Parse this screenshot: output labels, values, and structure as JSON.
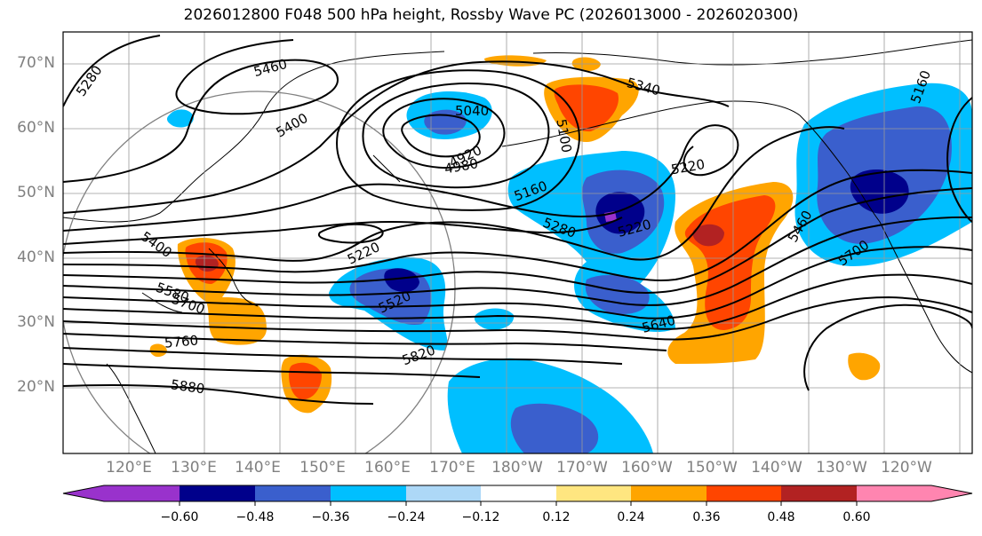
{
  "title": "2026012800 F048 500 hPa height, Rossby Wave PC (2026013000 - 2026020300)",
  "map": {
    "projection_ring": "circle",
    "lat_labels": [
      "70°N",
      "60°N",
      "50°N",
      "40°N",
      "30°N",
      "20°N"
    ],
    "lon_labels": [
      "120°E",
      "130°E",
      "140°E",
      "150°E",
      "160°E",
      "170°E",
      "180°W",
      "170°W",
      "160°W",
      "150°W",
      "140°W",
      "130°W",
      "120°W"
    ],
    "contour_labels": [
      "5280",
      "5460",
      "5400",
      "5040",
      "4920",
      "4980",
      "5100",
      "5340",
      "5160",
      "5220",
      "5280",
      "5220",
      "5220",
      "5460",
      "5400",
      "5580",
      "5700",
      "5760",
      "5520",
      "5640",
      "5820",
      "5880",
      "5700",
      "5160"
    ]
  },
  "colorbar": {
    "ticks": [
      "−0.60",
      "−0.48",
      "−0.36",
      "−0.24",
      "−0.12",
      "0.12",
      "0.24",
      "0.36",
      "0.48",
      "0.60"
    ],
    "colors": [
      "#9932cc",
      "#00008b",
      "#3a5fcd",
      "#00bfff",
      "#add8f7",
      "#ffffff",
      "#ffe680",
      "#ffa500",
      "#ff4500",
      "#b22222",
      "#ff85b0"
    ]
  },
  "colors": {
    "purple": "#9932cc",
    "navy": "#00008b",
    "blue": "#3a5fcd",
    "sky": "#00bfff",
    "lightblue": "#add8f7",
    "yellow": "#ffe680",
    "orange": "#ffa500",
    "redorange": "#ff4500",
    "darkred": "#b22222",
    "pink": "#ff85b0"
  }
}
